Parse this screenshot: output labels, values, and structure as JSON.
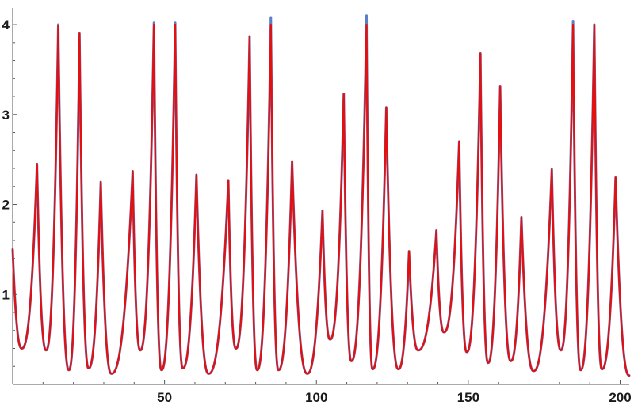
{
  "chart_data": {
    "type": "line",
    "title": "",
    "xlabel": "",
    "ylabel": "",
    "xlim": [
      0,
      203
    ],
    "ylim": [
      0,
      4.15
    ],
    "x_axis_crossing_y": 0,
    "x_ticks": [
      50,
      100,
      150,
      200
    ],
    "y_ticks": [
      1,
      2,
      3,
      4
    ],
    "x_tick_labels": [
      "50",
      "100",
      "150",
      "200"
    ],
    "y_tick_labels": [
      "1",
      "2",
      "3",
      "4"
    ],
    "grid": false,
    "legend": "none",
    "series": [
      {
        "color": "#5b7fc7",
        "peaks": [
          [
            0,
            1.5
          ],
          [
            8,
            2.45
          ],
          [
            15,
            4.0
          ],
          [
            22,
            3.9
          ],
          [
            29,
            2.25
          ],
          [
            39.5,
            2.37
          ],
          [
            46.5,
            4.02
          ],
          [
            53.5,
            4.02
          ],
          [
            60.5,
            2.33
          ],
          [
            71,
            2.27
          ],
          [
            78,
            3.87
          ],
          [
            85,
            4.08
          ],
          [
            92,
            2.48
          ],
          [
            102,
            1.93
          ],
          [
            109,
            3.23
          ],
          [
            116.5,
            4.1
          ],
          [
            123,
            3.08
          ],
          [
            130.5,
            1.48
          ],
          [
            139.5,
            1.71
          ],
          [
            147,
            2.7
          ],
          [
            154,
            3.68
          ],
          [
            160.5,
            3.31
          ],
          [
            167.5,
            1.86
          ],
          [
            177.5,
            2.39
          ],
          [
            184.5,
            4.04
          ],
          [
            191.5,
            4.0
          ],
          [
            198.5,
            2.3
          ]
        ],
        "troughs": [
          [
            3,
            0.4
          ],
          [
            11,
            0.38
          ],
          [
            18.5,
            0.16
          ],
          [
            25,
            0.18
          ],
          [
            32.5,
            0.12
          ],
          [
            42,
            0.38
          ],
          [
            49,
            0.16
          ],
          [
            56,
            0.18
          ],
          [
            64.5,
            0.12
          ],
          [
            73.5,
            0.4
          ],
          [
            80.5,
            0.16
          ],
          [
            87.5,
            0.16
          ],
          [
            97,
            0.12
          ],
          [
            104.5,
            0.5
          ],
          [
            111.5,
            0.26
          ],
          [
            118.5,
            0.17
          ],
          [
            127,
            0.17
          ],
          [
            133.5,
            0.38
          ],
          [
            142,
            0.58
          ],
          [
            149.5,
            0.36
          ],
          [
            156.5,
            0.24
          ],
          [
            164,
            0.26
          ],
          [
            171.5,
            0.15
          ],
          [
            180.5,
            0.38
          ],
          [
            187,
            0.16
          ],
          [
            194,
            0.17
          ],
          [
            203,
            0.1
          ]
        ]
      },
      {
        "color": "#e21010",
        "peaks": [
          [
            0,
            1.5
          ],
          [
            8,
            2.45
          ],
          [
            15,
            3.99
          ],
          [
            22,
            3.9
          ],
          [
            29,
            2.25
          ],
          [
            39.5,
            2.37
          ],
          [
            46.5,
            4.0
          ],
          [
            53.5,
            4.0
          ],
          [
            60.5,
            2.33
          ],
          [
            71,
            2.27
          ],
          [
            78,
            3.87
          ],
          [
            85,
            4.0
          ],
          [
            92,
            2.48
          ],
          [
            102,
            1.93
          ],
          [
            109,
            3.23
          ],
          [
            116.5,
            4.0
          ],
          [
            123,
            3.08
          ],
          [
            130.5,
            1.48
          ],
          [
            139.5,
            1.71
          ],
          [
            147,
            2.7
          ],
          [
            154,
            3.68
          ],
          [
            160.5,
            3.31
          ],
          [
            167.5,
            1.86
          ],
          [
            177.5,
            2.39
          ],
          [
            184.5,
            4.0
          ],
          [
            191.5,
            4.0
          ],
          [
            198.5,
            2.3
          ]
        ],
        "troughs": [
          [
            3,
            0.4
          ],
          [
            11,
            0.38
          ],
          [
            18.5,
            0.16
          ],
          [
            25,
            0.18
          ],
          [
            32.5,
            0.12
          ],
          [
            42,
            0.38
          ],
          [
            49,
            0.16
          ],
          [
            56,
            0.18
          ],
          [
            64.5,
            0.12
          ],
          [
            73.5,
            0.4
          ],
          [
            80.5,
            0.16
          ],
          [
            87.5,
            0.16
          ],
          [
            97,
            0.12
          ],
          [
            104.5,
            0.5
          ],
          [
            111.5,
            0.26
          ],
          [
            118.5,
            0.17
          ],
          [
            127,
            0.17
          ],
          [
            133.5,
            0.38
          ],
          [
            142,
            0.58
          ],
          [
            149.5,
            0.36
          ],
          [
            156.5,
            0.24
          ],
          [
            164,
            0.26
          ],
          [
            171.5,
            0.15
          ],
          [
            180.5,
            0.38
          ],
          [
            187,
            0.16
          ],
          [
            194,
            0.17
          ],
          [
            203,
            0.1
          ]
        ]
      }
    ]
  }
}
